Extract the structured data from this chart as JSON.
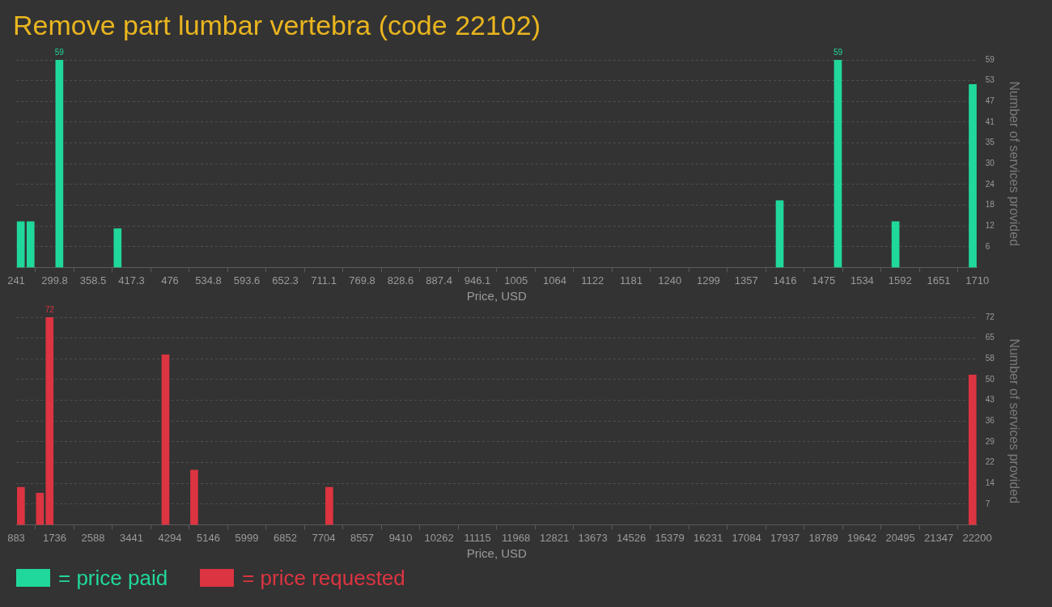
{
  "chart_data": [
    {
      "type": "bar",
      "title": "Remove part lumbar vertebra (code 22102)",
      "xlabel": "Price, USD",
      "ylabel": "Number of services provided",
      "x": [
        248,
        263,
        307,
        396,
        1408,
        1497,
        1585,
        1703
      ],
      "series": [
        {
          "name": "= price paid",
          "color": "#20d89c",
          "values": [
            13,
            13,
            59,
            11,
            19,
            59,
            13,
            52
          ],
          "value_labels": [
            null,
            null,
            "59",
            null,
            null,
            "59",
            null,
            null
          ]
        }
      ],
      "xlim": [
        241,
        1710
      ],
      "xticks": [
        241,
        299.8,
        358.5,
        417.3,
        476,
        534.8,
        593.6,
        652.3,
        711.1,
        769.8,
        828.6,
        887.4,
        946.1,
        1005,
        1064,
        1122,
        1181,
        1240,
        1299,
        1357,
        1416,
        1475,
        1534,
        1592,
        1651,
        1710
      ],
      "ylim": [
        0,
        59
      ],
      "yticks": [
        {
          "value": 5.9,
          "label": "6"
        },
        {
          "value": 11.8,
          "label": "12"
        },
        {
          "value": 17.7,
          "label": "18"
        },
        {
          "value": 23.6,
          "label": "24"
        },
        {
          "value": 29.5,
          "label": "30"
        },
        {
          "value": 35.4,
          "label": "35"
        },
        {
          "value": 41.3,
          "label": "41"
        },
        {
          "value": 47.2,
          "label": "47"
        },
        {
          "value": 53.1,
          "label": "53"
        },
        {
          "value": 59,
          "label": "59"
        }
      ],
      "grid": "y",
      "legend": "bottom"
    },
    {
      "type": "bar",
      "xlabel": "Price, USD",
      "ylabel": "Number of services provided",
      "x": [
        988,
        1410,
        1624,
        4194,
        4831,
        7827,
        22094
      ],
      "series": [
        {
          "name": "= price requested",
          "color": "#dc3441",
          "values": [
            13,
            11,
            72,
            59,
            19,
            13,
            52
          ],
          "value_labels": [
            null,
            null,
            "72",
            null,
            null,
            null,
            null
          ]
        }
      ],
      "xlim": [
        883,
        22200
      ],
      "xticks": [
        883,
        1736,
        2588,
        3441,
        4294,
        5146,
        5999,
        6852,
        7704,
        8557,
        9410,
        10262,
        11115,
        11968,
        12821,
        13673,
        14526,
        15379,
        16231,
        17084,
        17937,
        18789,
        19642,
        20495,
        21347,
        22200
      ],
      "ylim": [
        0,
        72
      ],
      "yticks": [
        {
          "value": 7.2,
          "label": "7"
        },
        {
          "value": 14.4,
          "label": "14"
        },
        {
          "value": 21.6,
          "label": "22"
        },
        {
          "value": 28.8,
          "label": "29"
        },
        {
          "value": 36,
          "label": "36"
        },
        {
          "value": 43.2,
          "label": "43"
        },
        {
          "value": 50.4,
          "label": "50"
        },
        {
          "value": 57.6,
          "label": "58"
        },
        {
          "value": 64.8,
          "label": "65"
        },
        {
          "value": 72,
          "label": "72"
        }
      ],
      "grid": "y",
      "legend": "bottom"
    }
  ]
}
